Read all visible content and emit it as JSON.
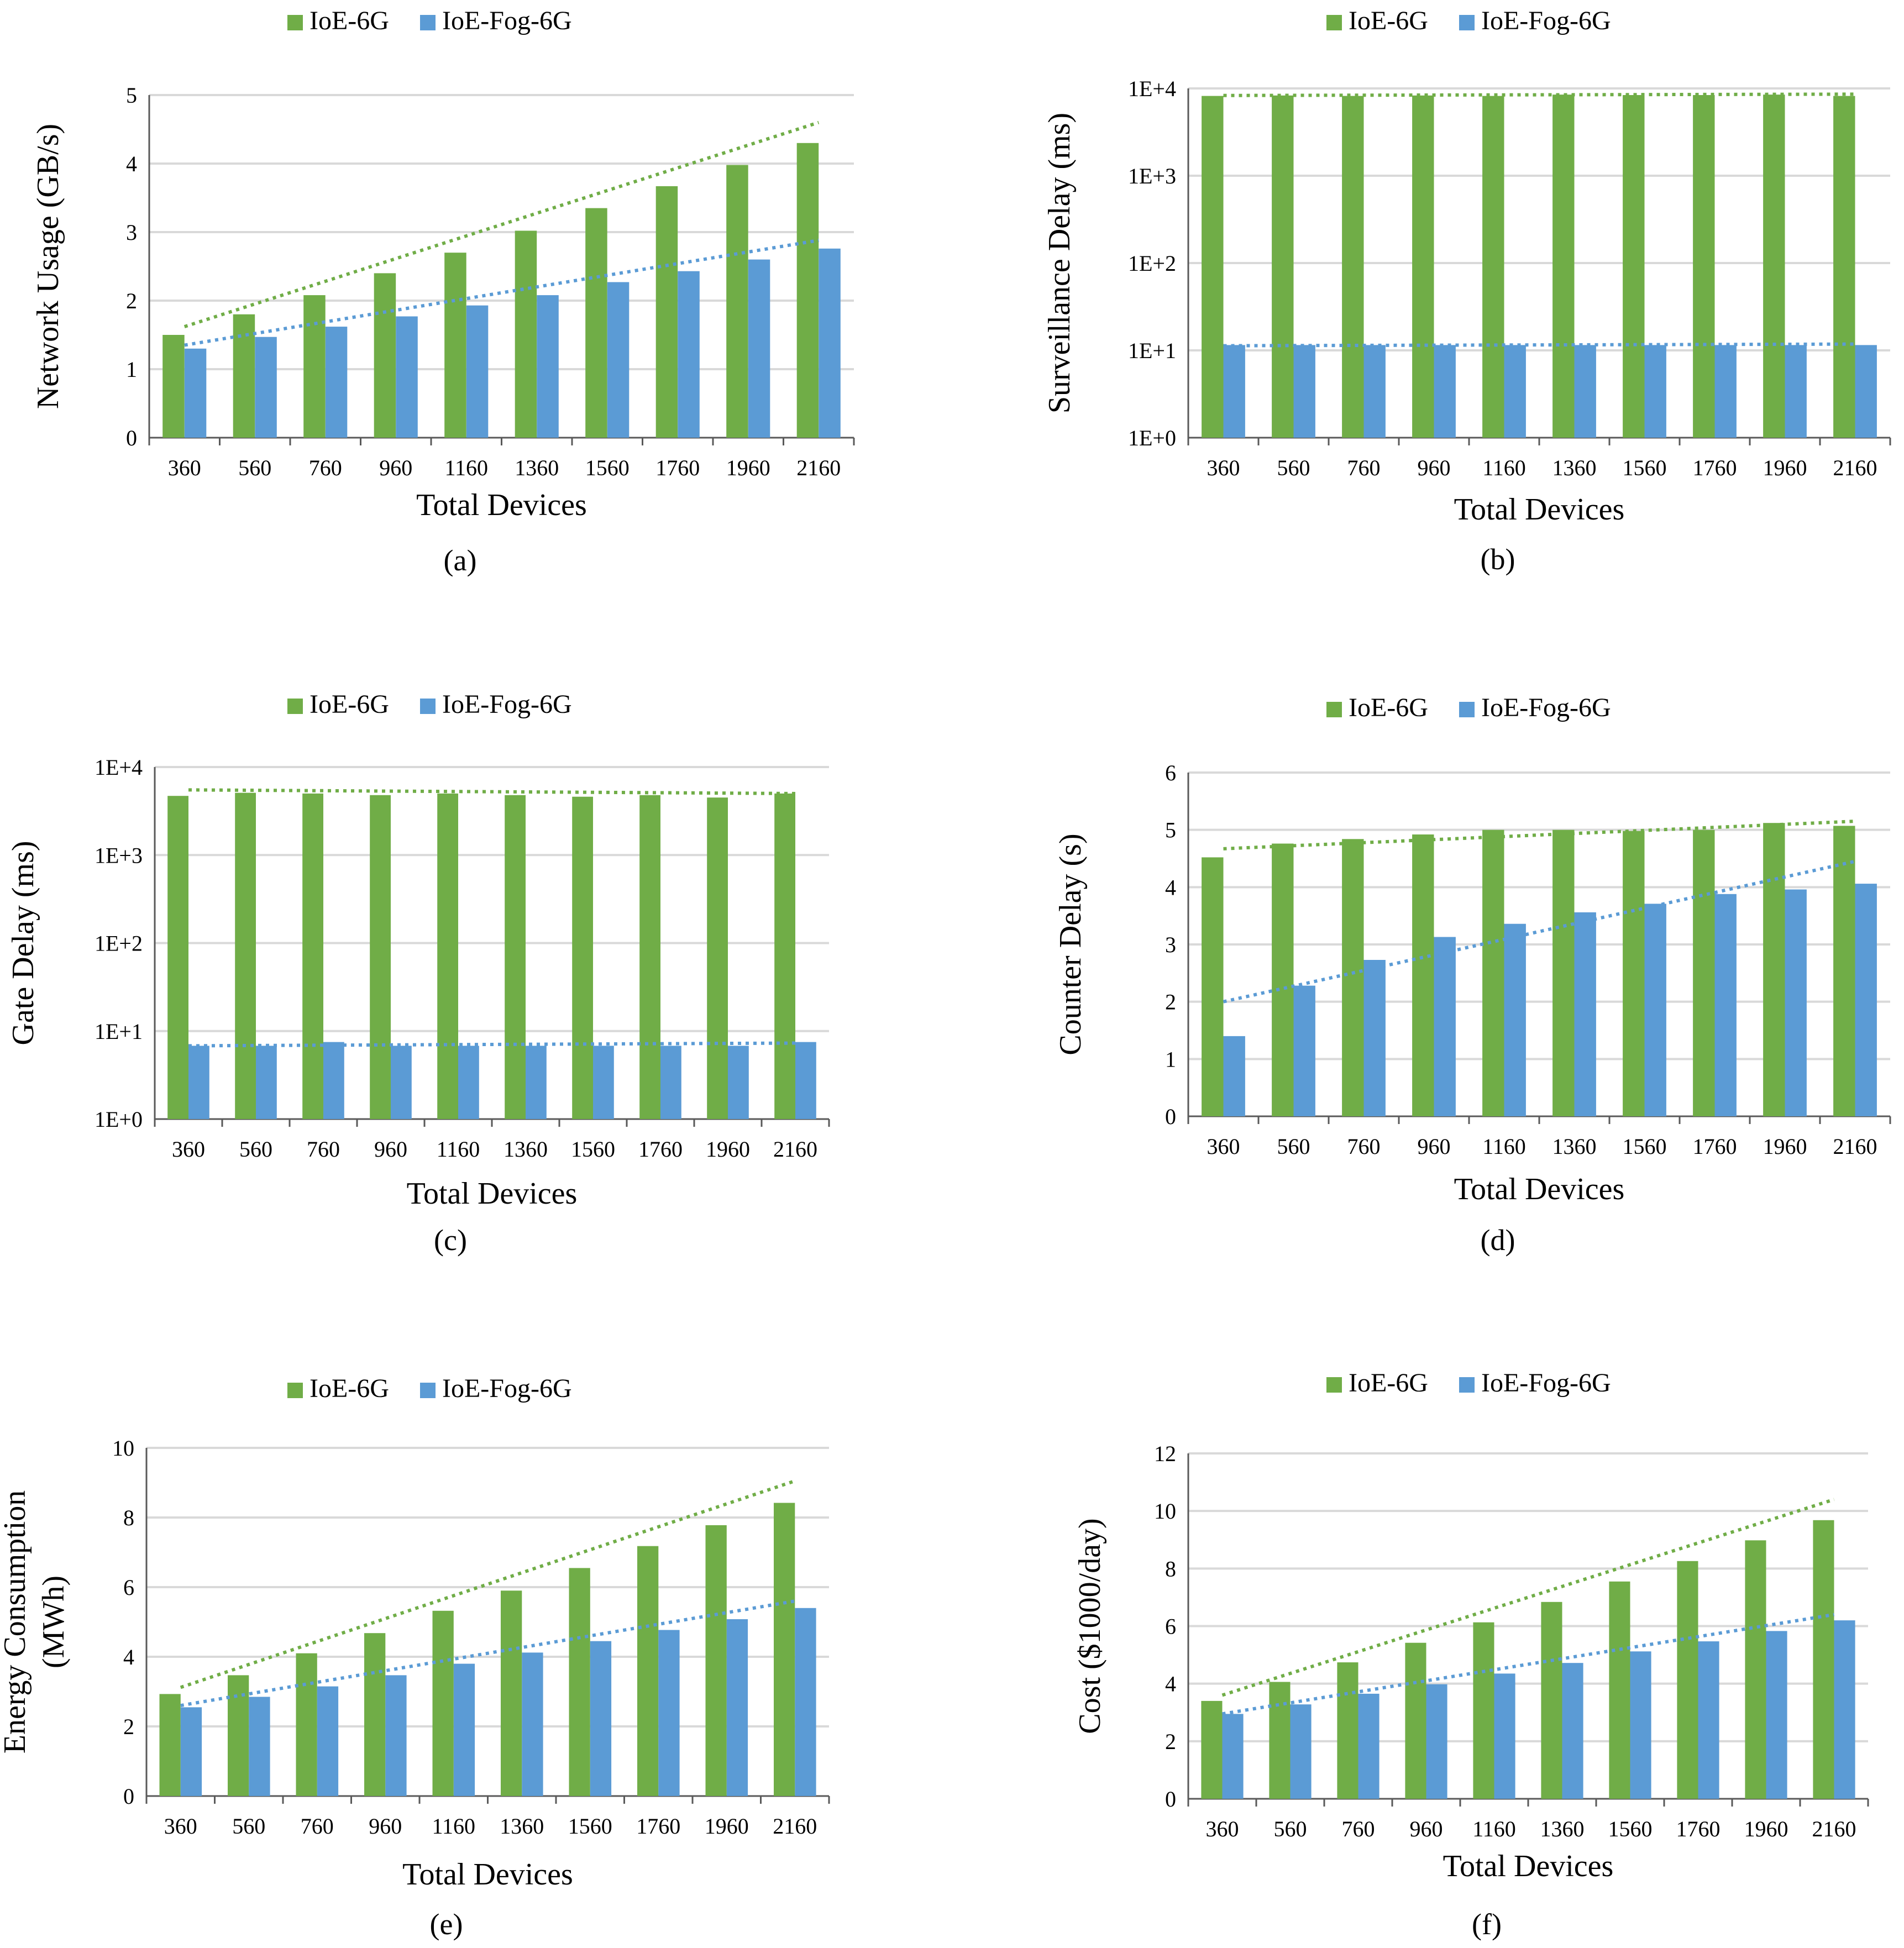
{
  "figure": {
    "colors": {
      "ioe_6g": "#70AD47",
      "ioe_fog_6g": "#5B9BD5",
      "grid": "#D9D9D9",
      "axis": "#595959"
    }
  },
  "chart_data": [
    {
      "id": "a",
      "type": "bar",
      "scale": "linear",
      "caption": "(a)",
      "xlabel": "Total Devices",
      "ylabel": "Network Usage (GB/s)",
      "categories": [
        "360",
        "560",
        "760",
        "960",
        "1160",
        "1360",
        "1560",
        "1760",
        "1960",
        "2160"
      ],
      "ylim": [
        0,
        5
      ],
      "yticks": [
        0,
        1,
        2,
        3,
        4,
        5
      ],
      "ytick_labels": [
        "0",
        "1",
        "2",
        "3",
        "4",
        "5"
      ],
      "legend": [
        "IoE-6G",
        "IoE-Fog-6G"
      ],
      "series": [
        {
          "name": "IoE-6G",
          "values": [
            1.5,
            1.8,
            2.08,
            2.4,
            2.7,
            3.02,
            3.35,
            3.67,
            3.98,
            4.3
          ],
          "trend": [
            1.62,
            4.6
          ]
        },
        {
          "name": "IoE-Fog-6G",
          "values": [
            1.3,
            1.47,
            1.62,
            1.77,
            1.93,
            2.08,
            2.27,
            2.43,
            2.6,
            2.76
          ],
          "trend": [
            1.35,
            2.88
          ]
        }
      ]
    },
    {
      "id": "b",
      "type": "bar",
      "scale": "log",
      "caption": "(b)",
      "xlabel": "Total Devices",
      "ylabel": "Surveillance Delay (ms)",
      "categories": [
        "360",
        "560",
        "760",
        "960",
        "1160",
        "1360",
        "1560",
        "1760",
        "1960",
        "2160"
      ],
      "ylim": [
        1,
        10000
      ],
      "yticks": [
        1,
        10,
        100,
        1000,
        10000
      ],
      "ytick_labels": [
        "1E+0",
        "1E+1",
        "1E+2",
        "1E+3",
        "1E+4"
      ],
      "legend": [
        "IoE-6G",
        "IoE-Fog-6G"
      ],
      "series": [
        {
          "name": "IoE-6G",
          "values": [
            8200,
            8300,
            8200,
            8300,
            8200,
            8500,
            8400,
            8400,
            8500,
            8200
          ],
          "trend": [
            8300,
            8600
          ]
        },
        {
          "name": "IoE-Fog-6G",
          "values": [
            11.5,
            11.5,
            11.5,
            11.5,
            11.5,
            11.5,
            11.5,
            11.5,
            11.5,
            11.5
          ],
          "trend": [
            11.3,
            11.8
          ]
        }
      ]
    },
    {
      "id": "c",
      "type": "bar",
      "scale": "log",
      "caption": "(c)",
      "xlabel": "Total Devices",
      "ylabel": "Gate Delay (ms)",
      "categories": [
        "360",
        "560",
        "760",
        "960",
        "1160",
        "1360",
        "1560",
        "1760",
        "1960",
        "2160"
      ],
      "ylim": [
        1,
        10000
      ],
      "yticks": [
        1,
        10,
        100,
        1000,
        10000
      ],
      "ytick_labels": [
        "1E+0",
        "1E+1",
        "1E+2",
        "1E+3",
        "1E+4"
      ],
      "legend": [
        "IoE-6G",
        "IoE-Fog-6G"
      ],
      "series": [
        {
          "name": "IoE-6G",
          "values": [
            4700,
            5100,
            5000,
            4800,
            5000,
            4800,
            4600,
            4800,
            4500,
            5000
          ],
          "trend": [
            5500,
            5000
          ]
        },
        {
          "name": "IoE-Fog-6G",
          "values": [
            6.8,
            6.8,
            7.5,
            6.8,
            6.8,
            6.8,
            6.8,
            6.8,
            6.8,
            7.5
          ],
          "trend": [
            6.8,
            7.3
          ]
        }
      ]
    },
    {
      "id": "d",
      "type": "bar",
      "scale": "linear",
      "caption": "(d)",
      "xlabel": "Total Devices",
      "ylabel": "Counter Delay (s)",
      "categories": [
        "360",
        "560",
        "760",
        "960",
        "1160",
        "1360",
        "1560",
        "1760",
        "1960",
        "2160"
      ],
      "ylim": [
        0,
        6
      ],
      "yticks": [
        0,
        1,
        2,
        3,
        4,
        5,
        6
      ],
      "ytick_labels": [
        "0",
        "1",
        "2",
        "3",
        "4",
        "5",
        "6"
      ],
      "legend": [
        "IoE-6G",
        "IoE-Fog-6G"
      ],
      "series": [
        {
          "name": "IoE-6G",
          "values": [
            4.52,
            4.76,
            4.84,
            4.92,
            5.0,
            5.0,
            4.98,
            5.0,
            5.12,
            5.07
          ],
          "trend": [
            4.67,
            5.15
          ]
        },
        {
          "name": "IoE-Fog-6G",
          "values": [
            1.4,
            2.28,
            2.73,
            3.13,
            3.36,
            3.56,
            3.71,
            3.88,
            3.96,
            4.06
          ],
          "trend": [
            2.0,
            4.45
          ]
        }
      ]
    },
    {
      "id": "e",
      "type": "bar",
      "scale": "linear",
      "caption": "(e)",
      "xlabel": "Total Devices",
      "ylabel": "Energy Consumption (MWh)",
      "ylabel_lines": [
        "Energy Consumption",
        "(MWh)"
      ],
      "categories": [
        "360",
        "560",
        "760",
        "960",
        "1160",
        "1360",
        "1560",
        "1760",
        "1960",
        "2160"
      ],
      "ylim": [
        0,
        10
      ],
      "yticks": [
        0,
        2,
        4,
        6,
        8,
        10
      ],
      "ytick_labels": [
        "0",
        "2",
        "4",
        "6",
        "8",
        "10"
      ],
      "legend": [
        "IoE-6G",
        "IoE-Fog-6G"
      ],
      "series": [
        {
          "name": "IoE-6G",
          "values": [
            2.93,
            3.47,
            4.1,
            4.68,
            5.32,
            5.9,
            6.55,
            7.18,
            7.78,
            8.42
          ],
          "trend": [
            3.12,
            9.05
          ]
        },
        {
          "name": "IoE-Fog-6G",
          "values": [
            2.55,
            2.85,
            3.15,
            3.47,
            3.8,
            4.12,
            4.45,
            4.77,
            5.08,
            5.4
          ],
          "trend": [
            2.6,
            5.6
          ]
        }
      ]
    },
    {
      "id": "f",
      "type": "bar",
      "scale": "linear",
      "caption": "(f)",
      "xlabel": "Total Devices",
      "ylabel": "Cost ($1000/day)",
      "categories": [
        "360",
        "560",
        "760",
        "960",
        "1160",
        "1360",
        "1560",
        "1760",
        "1960",
        "2160"
      ],
      "ylim": [
        0,
        12
      ],
      "yticks": [
        0,
        2,
        4,
        6,
        8,
        10,
        12
      ],
      "ytick_labels": [
        "0",
        "2",
        "4",
        "6",
        "8",
        "10",
        "12"
      ],
      "legend": [
        "IoE-6G",
        "IoE-Fog-6G"
      ],
      "series": [
        {
          "name": "IoE-6G",
          "values": [
            3.4,
            4.06,
            4.74,
            5.42,
            6.13,
            6.84,
            7.55,
            8.26,
            8.98,
            9.68
          ],
          "trend": [
            3.6,
            10.4
          ]
        },
        {
          "name": "IoE-Fog-6G",
          "values": [
            2.95,
            3.28,
            3.65,
            3.98,
            4.35,
            4.72,
            5.12,
            5.47,
            5.83,
            6.2
          ],
          "trend": [
            2.95,
            6.4
          ]
        }
      ]
    }
  ]
}
